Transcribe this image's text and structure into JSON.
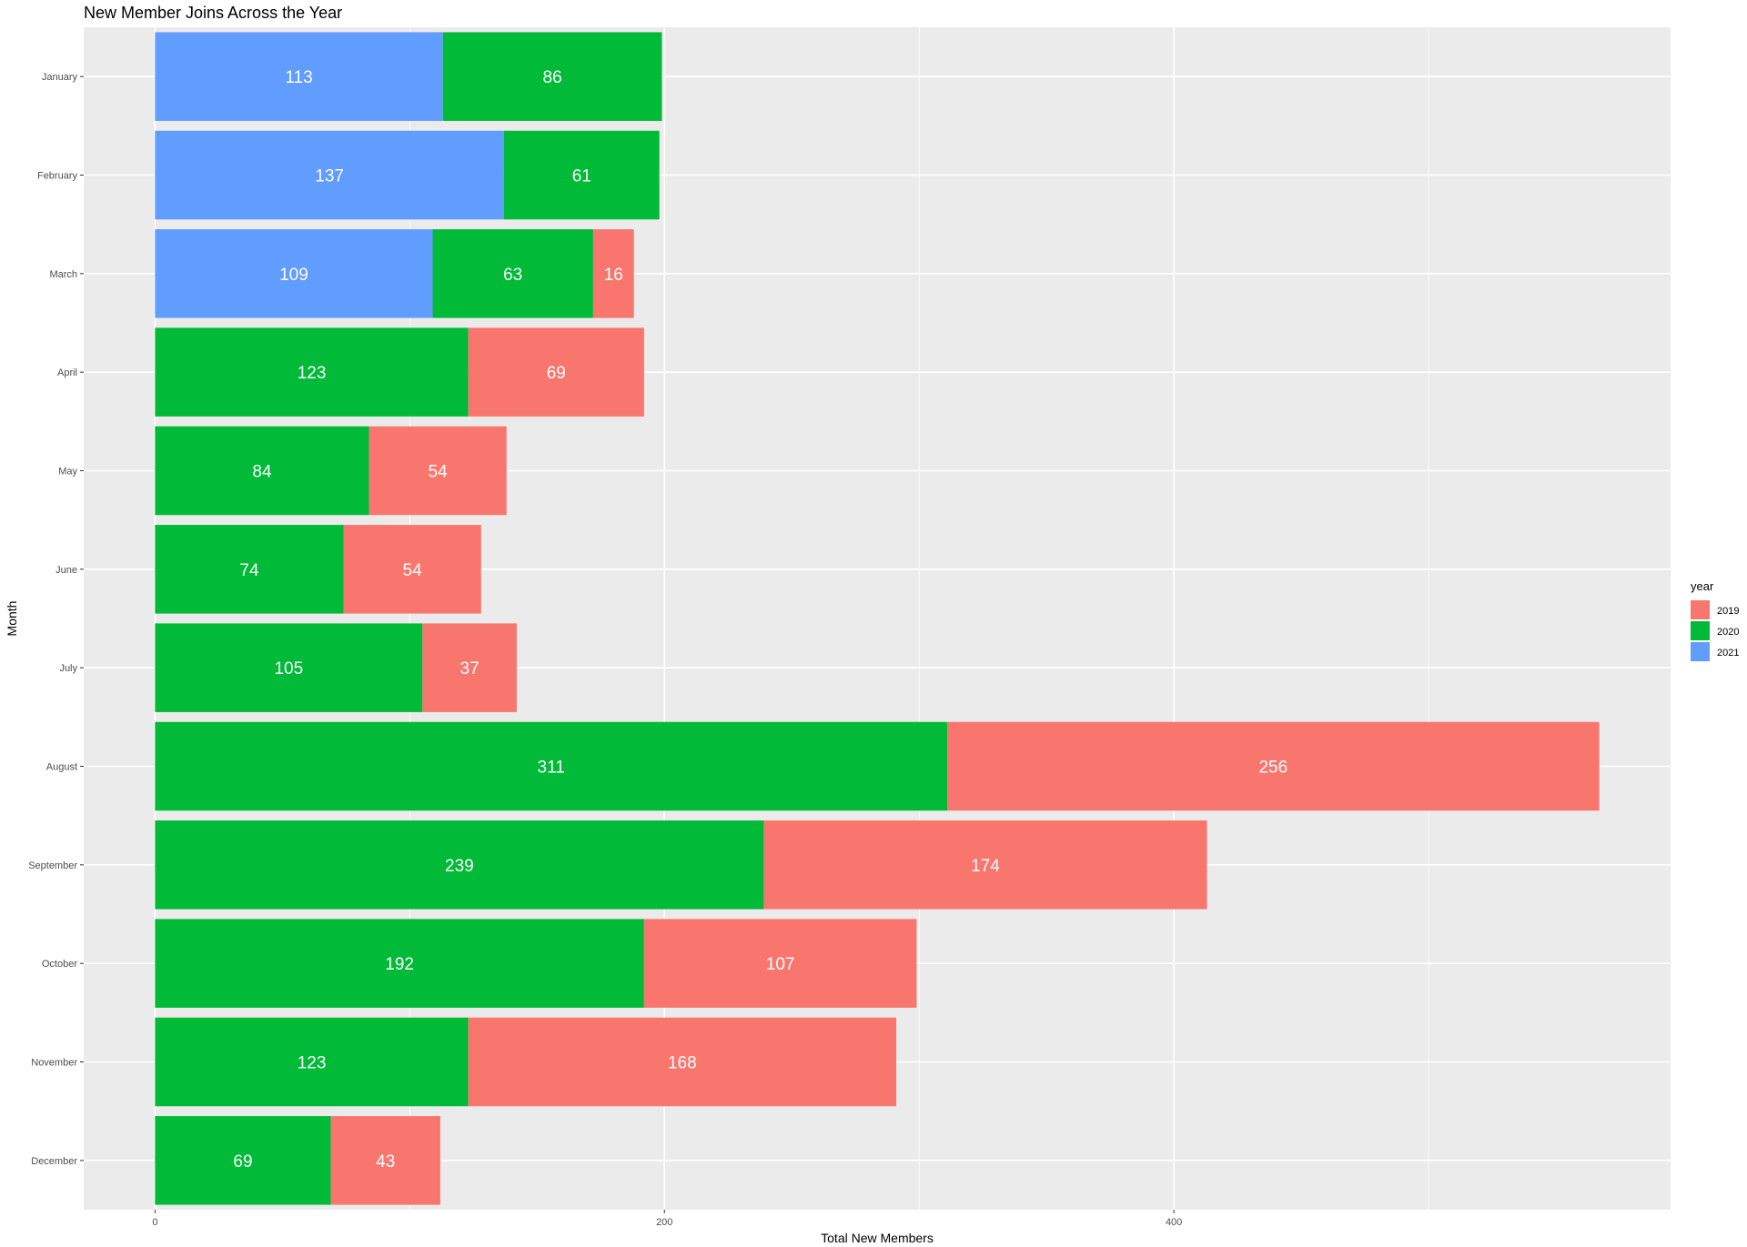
{
  "chart_data": {
    "type": "bar",
    "orientation": "horizontal",
    "stacked": true,
    "title": "New Member Joins Across the Year",
    "xlabel": "Total New Members",
    "ylabel": "Month",
    "xlim": [
      -28,
      595
    ],
    "x_ticks": [
      0,
      200,
      400
    ],
    "grid": true,
    "legend": {
      "title": "year",
      "position": "right",
      "entries": [
        "2019",
        "2020",
        "2021"
      ]
    },
    "colors": {
      "2019": "#F8766D",
      "2020": "#00BA38",
      "2021": "#619CFF"
    },
    "stack_order": [
      "2021",
      "2020",
      "2019"
    ],
    "categories": [
      "January",
      "February",
      "March",
      "April",
      "May",
      "June",
      "July",
      "August",
      "September",
      "October",
      "November",
      "December"
    ],
    "series": [
      {
        "name": "2021",
        "values": [
          113,
          137,
          109,
          null,
          null,
          null,
          null,
          null,
          null,
          null,
          null,
          null
        ]
      },
      {
        "name": "2020",
        "values": [
          86,
          61,
          63,
          123,
          84,
          74,
          105,
          311,
          239,
          192,
          123,
          69
        ]
      },
      {
        "name": "2019",
        "values": [
          null,
          null,
          16,
          69,
          54,
          54,
          37,
          256,
          174,
          107,
          168,
          43
        ]
      }
    ]
  }
}
